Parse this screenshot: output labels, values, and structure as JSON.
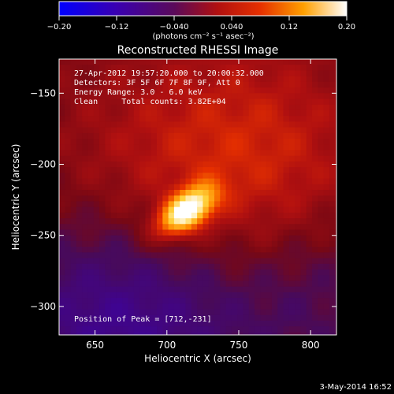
{
  "chart_data": {
    "type": "heatmap",
    "title": "Reconstructed RHESSI Image",
    "xlabel": "Heliocentric X (arcsec)",
    "ylabel": "Heliocentric Y (arcsec)",
    "xlim": [
      625,
      818
    ],
    "ylim": [
      -320,
      -126
    ],
    "x_ticks": [
      650,
      700,
      750,
      800
    ],
    "y_ticks": [
      -150,
      -200,
      -250,
      -300
    ],
    "colorbar": {
      "range": [
        -0.2,
        0.2
      ],
      "ticks": [
        "-0.20",
        "-0.12",
        "-0.040",
        "0.040",
        "0.12",
        "0.20"
      ],
      "label": "(photons cm⁻² s⁻¹ asec⁻²)",
      "colormap": "blue-purple-red-yellow-white"
    },
    "annotations": [
      "27-Apr-2012 19:57:20.000 to 20:00:32.000",
      "Detectors: 3F 5F 6F 7F 8F 9F, Att 0",
      "Energy Range: 3.0 - 6.0 keV",
      "Clean     Total counts: 3.82E+04"
    ],
    "peak": {
      "x": 712,
      "y": -231,
      "label": "Position of Peak = [712,-231]"
    },
    "footer_date": "3-May-2014 16:52"
  }
}
